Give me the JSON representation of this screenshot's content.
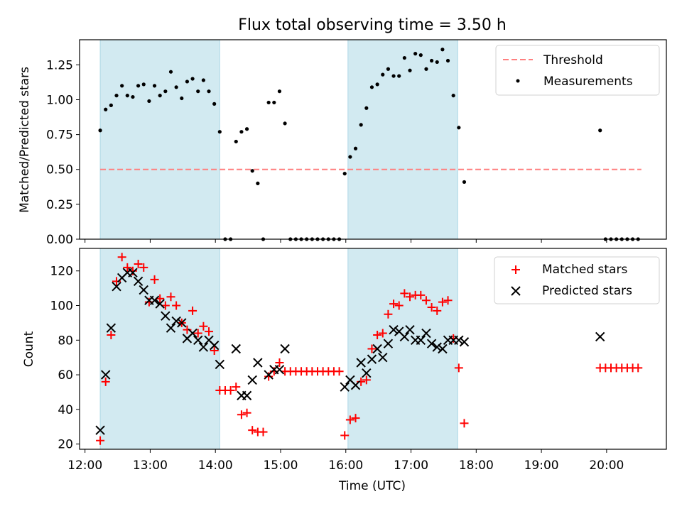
{
  "figure": {
    "title": "Flux total observing time = 3.50 h",
    "xlabel": "Time (UTC)",
    "x_tick_labels": [
      "12:00",
      "13:00",
      "14:00",
      "15:00",
      "16:00",
      "17:00",
      "18:00",
      "19:00",
      "20:00"
    ]
  },
  "colors": {
    "shade": "#add8e6",
    "threshold": "#ff7f7f",
    "matched": "#ff0000",
    "predicted": "#000000",
    "measurement": "#000000"
  },
  "chart_data": [
    {
      "type": "scatter",
      "ylabel": "Matched/Predicted stars",
      "xlim": [
        "11:55",
        "20:55"
      ],
      "ylim": [
        0,
        1.43
      ],
      "y_ticks": [
        "0.00",
        "0.25",
        "0.50",
        "0.75",
        "1.00",
        "1.25"
      ],
      "shaded_intervals": [
        [
          "12:14",
          "14:04"
        ],
        [
          "16:02",
          "17:43"
        ]
      ],
      "threshold": {
        "name": "Threshold",
        "y": 0.5,
        "x_range": [
          "12:14",
          "20:32"
        ]
      },
      "legend": {
        "position": "top-right",
        "entries": [
          "Threshold",
          "Measurements"
        ]
      },
      "series": [
        {
          "name": "Measurements",
          "points": [
            [
              "12:14",
              0.78
            ],
            [
              "12:19",
              0.93
            ],
            [
              "12:24",
              0.96
            ],
            [
              "12:29",
              1.03
            ],
            [
              "12:34",
              1.1
            ],
            [
              "12:39",
              1.03
            ],
            [
              "12:44",
              1.02
            ],
            [
              "12:49",
              1.1
            ],
            [
              "12:54",
              1.11
            ],
            [
              "12:59",
              0.99
            ],
            [
              "13:04",
              1.1
            ],
            [
              "13:09",
              1.03
            ],
            [
              "13:14",
              1.06
            ],
            [
              "13:19",
              1.2
            ],
            [
              "13:24",
              1.09
            ],
            [
              "13:29",
              1.01
            ],
            [
              "13:34",
              1.13
            ],
            [
              "13:39",
              1.15
            ],
            [
              "13:44",
              1.06
            ],
            [
              "13:49",
              1.14
            ],
            [
              "13:54",
              1.06
            ],
            [
              "13:59",
              0.97
            ],
            [
              "14:04",
              0.77
            ],
            [
              "14:09",
              0.0
            ],
            [
              "14:14",
              0.0
            ],
            [
              "14:19",
              0.7
            ],
            [
              "14:24",
              0.77
            ],
            [
              "14:29",
              0.79
            ],
            [
              "14:34",
              0.49
            ],
            [
              "14:39",
              0.4
            ],
            [
              "14:44",
              0.0
            ],
            [
              "14:49",
              0.98
            ],
            [
              "14:54",
              0.98
            ],
            [
              "14:59",
              1.06
            ],
            [
              "15:04",
              0.83
            ],
            [
              "15:09",
              0.0
            ],
            [
              "15:14",
              0.0
            ],
            [
              "15:19",
              0.0
            ],
            [
              "15:24",
              0.0
            ],
            [
              "15:29",
              0.0
            ],
            [
              "15:34",
              0.0
            ],
            [
              "15:39",
              0.0
            ],
            [
              "15:44",
              0.0
            ],
            [
              "15:49",
              0.0
            ],
            [
              "15:54",
              0.0
            ],
            [
              "15:59",
              0.47
            ],
            [
              "16:04",
              0.59
            ],
            [
              "16:09",
              0.65
            ],
            [
              "16:14",
              0.82
            ],
            [
              "16:19",
              0.94
            ],
            [
              "16:24",
              1.09
            ],
            [
              "16:29",
              1.11
            ],
            [
              "16:34",
              1.18
            ],
            [
              "16:39",
              1.22
            ],
            [
              "16:44",
              1.17
            ],
            [
              "16:49",
              1.17
            ],
            [
              "16:54",
              1.3
            ],
            [
              "16:59",
              1.21
            ],
            [
              "17:04",
              1.33
            ],
            [
              "17:09",
              1.32
            ],
            [
              "17:14",
              1.22
            ],
            [
              "17:19",
              1.28
            ],
            [
              "17:24",
              1.27
            ],
            [
              "17:29",
              1.36
            ],
            [
              "17:34",
              1.28
            ],
            [
              "17:39",
              1.03
            ],
            [
              "17:44",
              0.8
            ],
            [
              "17:49",
              0.41
            ],
            [
              "19:54",
              0.78
            ],
            [
              "19:59",
              0.0
            ],
            [
              "20:04",
              0.0
            ],
            [
              "20:09",
              0.0
            ],
            [
              "20:14",
              0.0
            ],
            [
              "20:19",
              0.0
            ],
            [
              "20:24",
              0.0
            ],
            [
              "20:29",
              0.0
            ]
          ]
        }
      ]
    },
    {
      "type": "scatter",
      "ylabel": "Count",
      "xlim": [
        "11:55",
        "20:55"
      ],
      "ylim": [
        17,
        133
      ],
      "y_ticks": [
        "20",
        "40",
        "60",
        "80",
        "100",
        "120"
      ],
      "shaded_intervals": [
        [
          "12:14",
          "14:04"
        ],
        [
          "16:02",
          "17:43"
        ]
      ],
      "legend": {
        "position": "top-right",
        "entries": [
          "Matched stars",
          "Predicted stars"
        ]
      },
      "series": [
        {
          "name": "Matched stars",
          "marker": "plus",
          "points": [
            [
              "12:14",
              22
            ],
            [
              "12:19",
              56
            ],
            [
              "12:24",
              83
            ],
            [
              "12:29",
              114
            ],
            [
              "12:34",
              128
            ],
            [
              "12:39",
              122
            ],
            [
              "12:44",
              120
            ],
            [
              "12:49",
              124
            ],
            [
              "12:54",
              122
            ],
            [
              "12:59",
              102
            ],
            [
              "13:04",
              115
            ],
            [
              "13:09",
              104
            ],
            [
              "13:14",
              100
            ],
            [
              "13:19",
              105
            ],
            [
              "13:24",
              100
            ],
            [
              "13:29",
              90
            ],
            [
              "13:34",
              86
            ],
            [
              "13:39",
              97
            ],
            [
              "13:44",
              84
            ],
            [
              "13:49",
              88
            ],
            [
              "13:54",
              85
            ],
            [
              "13:59",
              74
            ],
            [
              "14:04",
              51
            ],
            [
              "14:09",
              51
            ],
            [
              "14:14",
              51
            ],
            [
              "14:19",
              53
            ],
            [
              "14:24",
              37
            ],
            [
              "14:29",
              38
            ],
            [
              "14:34",
              28
            ],
            [
              "14:39",
              27
            ],
            [
              "14:44",
              27
            ],
            [
              "14:49",
              59
            ],
            [
              "14:54",
              62
            ],
            [
              "14:59",
              67
            ],
            [
              "15:04",
              62
            ],
            [
              "15:09",
              62
            ],
            [
              "15:14",
              62
            ],
            [
              "15:19",
              62
            ],
            [
              "15:24",
              62
            ],
            [
              "15:29",
              62
            ],
            [
              "15:34",
              62
            ],
            [
              "15:39",
              62
            ],
            [
              "15:44",
              62
            ],
            [
              "15:49",
              62
            ],
            [
              "15:54",
              62
            ],
            [
              "15:59",
              25
            ],
            [
              "16:04",
              34
            ],
            [
              "16:09",
              35
            ],
            [
              "16:14",
              56
            ],
            [
              "16:19",
              57
            ],
            [
              "16:24",
              75
            ],
            [
              "16:29",
              83
            ],
            [
              "16:34",
              84
            ],
            [
              "16:39",
              95
            ],
            [
              "16:44",
              101
            ],
            [
              "16:49",
              100
            ],
            [
              "16:54",
              107
            ],
            [
              "16:59",
              105
            ],
            [
              "17:04",
              106
            ],
            [
              "17:09",
              106
            ],
            [
              "17:14",
              103
            ],
            [
              "17:19",
              99
            ],
            [
              "17:24",
              97
            ],
            [
              "17:29",
              102
            ],
            [
              "17:34",
              103
            ],
            [
              "17:39",
              81
            ],
            [
              "17:44",
              64
            ],
            [
              "17:49",
              32
            ],
            [
              "19:54",
              64
            ],
            [
              "19:59",
              64
            ],
            [
              "20:04",
              64
            ],
            [
              "20:09",
              64
            ],
            [
              "20:14",
              64
            ],
            [
              "20:19",
              64
            ],
            [
              "20:24",
              64
            ],
            [
              "20:29",
              64
            ]
          ]
        },
        {
          "name": "Predicted stars",
          "marker": "x",
          "points": [
            [
              "12:14",
              28
            ],
            [
              "12:19",
              60
            ],
            [
              "12:24",
              87
            ],
            [
              "12:29",
              111
            ],
            [
              "12:34",
              116
            ],
            [
              "12:39",
              119
            ],
            [
              "12:44",
              119
            ],
            [
              "12:49",
              114
            ],
            [
              "12:54",
              109
            ],
            [
              "12:59",
              103
            ],
            [
              "13:04",
              103
            ],
            [
              "13:09",
              101
            ],
            [
              "13:14",
              94
            ],
            [
              "13:19",
              87
            ],
            [
              "13:24",
              91
            ],
            [
              "13:29",
              90
            ],
            [
              "13:34",
              81
            ],
            [
              "13:39",
              84
            ],
            [
              "13:44",
              80
            ],
            [
              "13:49",
              76
            ],
            [
              "13:54",
              80
            ],
            [
              "13:59",
              77
            ],
            [
              "14:04",
              66
            ],
            [
              "14:19",
              75
            ],
            [
              "14:24",
              48
            ],
            [
              "14:29",
              48
            ],
            [
              "14:34",
              57
            ],
            [
              "14:39",
              67
            ],
            [
              "14:49",
              60
            ],
            [
              "14:54",
              63
            ],
            [
              "14:59",
              63
            ],
            [
              "15:04",
              75
            ],
            [
              "15:59",
              53
            ],
            [
              "16:04",
              57
            ],
            [
              "16:09",
              54
            ],
            [
              "16:14",
              67
            ],
            [
              "16:19",
              61
            ],
            [
              "16:24",
              69
            ],
            [
              "16:29",
              75
            ],
            [
              "16:34",
              70
            ],
            [
              "16:39",
              78
            ],
            [
              "16:44",
              86
            ],
            [
              "16:49",
              85
            ],
            [
              "16:54",
              82
            ],
            [
              "16:59",
              86
            ],
            [
              "17:04",
              80
            ],
            [
              "17:09",
              80
            ],
            [
              "17:14",
              84
            ],
            [
              "17:19",
              78
            ],
            [
              "17:24",
              76
            ],
            [
              "17:29",
              75
            ],
            [
              "17:34",
              80
            ],
            [
              "17:39",
              80
            ],
            [
              "17:44",
              80
            ],
            [
              "17:49",
              79
            ],
            [
              "19:54",
              82
            ]
          ]
        }
      ]
    }
  ]
}
